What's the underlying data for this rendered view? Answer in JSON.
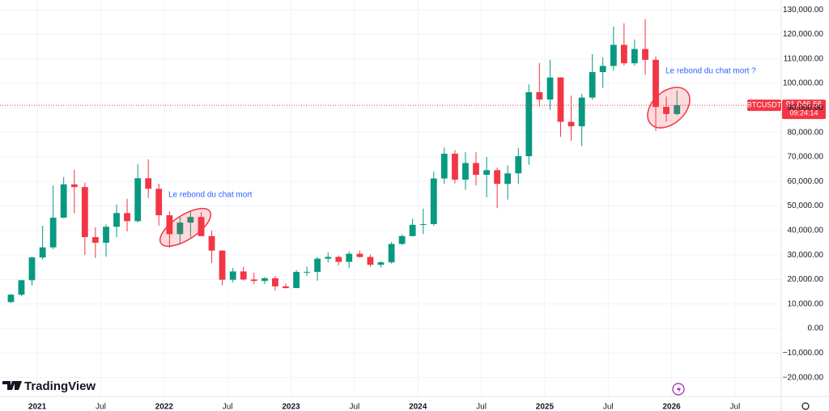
{
  "chart_data": {
    "type": "candlestick",
    "series": [
      {
        "name": "BTCUSDT",
        "up_color": "#089981",
        "down_color": "#f23645",
        "x": [
          2020.792,
          2020.875,
          2020.958,
          2021.042,
          2021.125,
          2021.208,
          2021.292,
          2021.375,
          2021.458,
          2021.542,
          2021.625,
          2021.708,
          2021.792,
          2021.875,
          2021.958,
          2022.042,
          2022.125,
          2022.208,
          2022.292,
          2022.375,
          2022.458,
          2022.542,
          2022.625,
          2022.708,
          2022.792,
          2022.875,
          2022.958,
          2023.042,
          2023.125,
          2023.208,
          2023.292,
          2023.375,
          2023.458,
          2023.542,
          2023.625,
          2023.708,
          2023.792,
          2023.875,
          2023.958,
          2024.042,
          2024.125,
          2024.208,
          2024.292,
          2024.375,
          2024.458,
          2024.542,
          2024.625,
          2024.708,
          2024.792,
          2024.875,
          2024.958,
          2025.042,
          2025.125,
          2025.208,
          2025.292,
          2025.375,
          2025.458,
          2025.542,
          2025.625,
          2025.708,
          2025.792,
          2025.875,
          2025.958,
          2026.042
        ],
        "open": [
          10800,
          13800,
          19700,
          29000,
          33100,
          45200,
          58800,
          57700,
          37300,
          35000,
          41500,
          47100,
          43800,
          61300,
          57000,
          46200,
          38500,
          43200,
          45500,
          37700,
          31800,
          19900,
          23300,
          20000,
          19400,
          20500,
          17200,
          16500,
          23100,
          23100,
          28500,
          29200,
          27200,
          30500,
          29200,
          26000,
          27000,
          34500,
          37700,
          42300,
          42600,
          61200,
          71300,
          60700,
          67500,
          62700,
          64600,
          59000,
          63300,
          70300,
          96400,
          93400,
          102400,
          84300,
          82500,
          94200,
          104600,
          107100,
          115700,
          108200,
          114000,
          109600,
          90400,
          87500
        ],
        "high": [
          14100,
          19900,
          29300,
          41900,
          58300,
          61800,
          64800,
          59500,
          41300,
          42400,
          50500,
          52900,
          67000,
          69000,
          59100,
          47900,
          45800,
          48200,
          47400,
          40000,
          31900,
          24700,
          25200,
          22800,
          21000,
          21500,
          18400,
          23900,
          25300,
          29200,
          31000,
          29800,
          31400,
          31800,
          30200,
          27500,
          35200,
          38400,
          44700,
          48900,
          64000,
          73800,
          72800,
          71900,
          72000,
          70000,
          65600,
          66500,
          73600,
          99600,
          108300,
          109600,
          102500,
          95000,
          95700,
          111900,
          110500,
          123200,
          124500,
          117900,
          126200,
          111000,
          94600,
          97000
        ],
        "low": [
          10400,
          13200,
          17600,
          28100,
          32300,
          45000,
          47000,
          30000,
          28800,
          29300,
          37300,
          39600,
          43300,
          53200,
          42000,
          32900,
          34300,
          37200,
          37700,
          26700,
          17600,
          18800,
          19600,
          18100,
          18200,
          15500,
          16300,
          16500,
          21400,
          19500,
          26900,
          25800,
          24800,
          28900,
          25200,
          24900,
          26500,
          34100,
          37600,
          38500,
          41900,
          59000,
          59200,
          56600,
          58400,
          53500,
          49100,
          52600,
          58900,
          66800,
          90500,
          89200,
          78200,
          76600,
          74400,
          93400,
          98200,
          105200,
          107300,
          107200,
          103500,
          80600,
          84400,
          87000
        ],
        "close": [
          13800,
          19700,
          29000,
          33100,
          45200,
          58800,
          57700,
          37300,
          35000,
          41500,
          47100,
          43800,
          61300,
          57000,
          46200,
          38500,
          43200,
          45500,
          37700,
          31800,
          19900,
          23300,
          20000,
          19400,
          20500,
          17200,
          16500,
          23100,
          23100,
          28500,
          29200,
          27200,
          30500,
          29200,
          26000,
          27000,
          34500,
          37700,
          42300,
          42600,
          61200,
          71300,
          60700,
          67500,
          62700,
          64600,
          59000,
          63300,
          70300,
          96400,
          93400,
          102400,
          84300,
          82500,
          94200,
          104600,
          107100,
          115700,
          108200,
          114000,
          109600,
          90400,
          87500,
          91046.56
        ]
      }
    ],
    "last_price": {
      "value": 91046.56,
      "label": "91,046.56"
    },
    "countdown": "09:24:14",
    "annotations": [
      "Le rebond du chat mort",
      "Le rebond du chat mort ?"
    ],
    "brand": "TradingView",
    "xlim": [
      2020.706,
      2026.864
    ],
    "xticks": [
      {
        "value": 2021,
        "label": "2021"
      },
      {
        "value": 2021.5,
        "label": "Jul"
      },
      {
        "value": 2022,
        "label": "2022"
      },
      {
        "value": 2022.5,
        "label": "Jul"
      },
      {
        "value": 2023,
        "label": "2023"
      },
      {
        "value": 2023.5,
        "label": "Jul"
      },
      {
        "value": 2024,
        "label": "2024"
      },
      {
        "value": 2024.5,
        "label": "Jul"
      },
      {
        "value": 2025,
        "label": "2025"
      },
      {
        "value": 2025.5,
        "label": "Jul"
      },
      {
        "value": 2026,
        "label": "2026"
      },
      {
        "value": 2026.5,
        "label": "Jul"
      }
    ],
    "ylim": [
      -27700,
      134000
    ],
    "yticks": [
      {
        "value": -20000,
        "label": "−20,000.00"
      },
      {
        "value": -10000,
        "label": "−10,000.00"
      },
      {
        "value": 0,
        "label": "0.00"
      },
      {
        "value": 10000,
        "label": "10,000.00"
      },
      {
        "value": 20000,
        "label": "20,000.00"
      },
      {
        "value": 30000,
        "label": "30,000.00"
      },
      {
        "value": 40000,
        "label": "40,000.00"
      },
      {
        "value": 50000,
        "label": "50,000.00"
      },
      {
        "value": 60000,
        "label": "60,000.00"
      },
      {
        "value": 70000,
        "label": "70,000.00"
      },
      {
        "value": 80000,
        "label": "80,000.00"
      },
      {
        "value": 90000,
        "label": "90,000.00"
      },
      {
        "value": 100000,
        "label": "100,000.00"
      },
      {
        "value": 110000,
        "label": "110,000.00"
      },
      {
        "value": 120000,
        "label": "120,000.00"
      },
      {
        "value": 130000,
        "label": "130,000.00"
      }
    ],
    "grid": true
  }
}
